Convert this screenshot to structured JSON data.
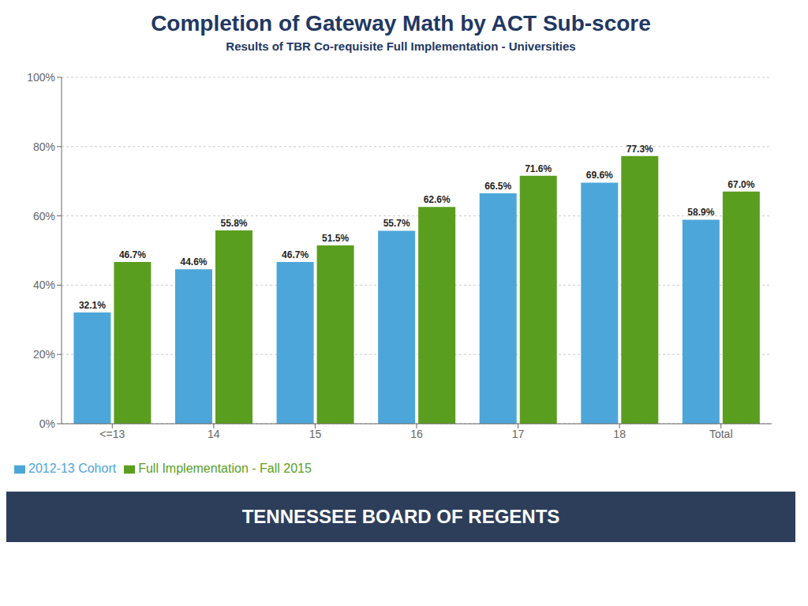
{
  "chart_data": {
    "type": "bar",
    "title": "Completion of Gateway Math by ACT Sub-score",
    "subtitle": "Results of TBR Co-requisite Full Implementation - Universities",
    "categories": [
      "<=13",
      "14",
      "15",
      "16",
      "17",
      "18",
      "Total"
    ],
    "series": [
      {
        "name": "2012-13 Cohort",
        "color": "#4DA6D9",
        "values": [
          32.1,
          44.6,
          46.7,
          55.7,
          66.5,
          69.6,
          58.9
        ],
        "value_labels": [
          "32.1%",
          "44.6%",
          "46.7%",
          "55.7%",
          "66.5%",
          "69.6%",
          "58.9%"
        ]
      },
      {
        "name": "Full Implementation - Fall 2015",
        "color": "#5A9E1F",
        "values": [
          46.7,
          55.8,
          51.5,
          62.6,
          71.6,
          77.3,
          67.0
        ],
        "value_labels": [
          "46.7%",
          "55.8%",
          "51.5%",
          "62.6%",
          "71.6%",
          "77.3%",
          "67.0%"
        ]
      }
    ],
    "ylim": [
      0,
      100
    ],
    "yticks": [
      {
        "value": 0,
        "label": "0%"
      },
      {
        "value": 20,
        "label": "20%"
      },
      {
        "value": 40,
        "label": "40%"
      },
      {
        "value": 60,
        "label": "60%"
      },
      {
        "value": 80,
        "label": "80%"
      },
      {
        "value": 100,
        "label": "100%"
      }
    ],
    "grid": true,
    "legend": "lower left",
    "data_labels": true,
    "annotations": [
      "TENNESSEE BOARD OF REGENTS"
    ]
  }
}
